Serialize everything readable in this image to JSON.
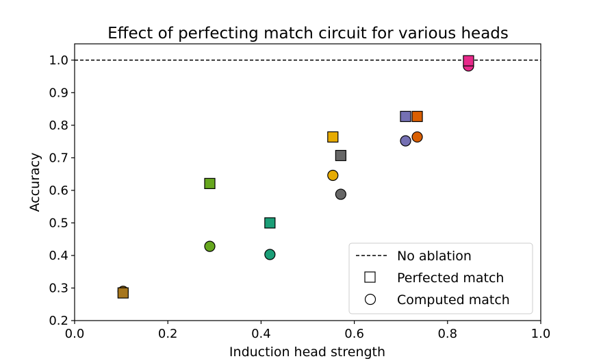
{
  "chart_data": {
    "type": "scatter",
    "title": "Effect of perfecting match circuit for various heads",
    "xlabel": "Induction head strength",
    "ylabel": "Accuracy",
    "xlim": [
      0.0,
      1.0
    ],
    "ylim": [
      0.2,
      1.05
    ],
    "xticks": [
      "0.0",
      "0.2",
      "0.4",
      "0.6",
      "0.8",
      "1.0"
    ],
    "yticks": [
      "0.2",
      "0.3",
      "0.4",
      "0.5",
      "0.6",
      "0.7",
      "0.8",
      "0.9",
      "1.0"
    ],
    "grid": false,
    "baseline": {
      "y": 1.0,
      "style": "dashed",
      "color": "#000000"
    },
    "heads": [
      {
        "x": 0.104,
        "perfected": 0.285,
        "computed": 0.29,
        "color": "#a6761d"
      },
      {
        "x": 0.29,
        "perfected": 0.621,
        "computed": 0.428,
        "color": "#66a61e"
      },
      {
        "x": 0.419,
        "perfected": 0.5,
        "computed": 0.403,
        "color": "#1b9e77"
      },
      {
        "x": 0.554,
        "perfected": 0.764,
        "computed": 0.646,
        "color": "#e6ab02"
      },
      {
        "x": 0.571,
        "perfected": 0.707,
        "computed": 0.588,
        "color": "#666666"
      },
      {
        "x": 0.71,
        "perfected": 0.827,
        "computed": 0.752,
        "color": "#7570b3"
      },
      {
        "x": 0.735,
        "perfected": 0.827,
        "computed": 0.764,
        "color": "#d95f02"
      },
      {
        "x": 0.845,
        "perfected": 0.998,
        "computed": 0.982,
        "color": "#e7298a"
      }
    ],
    "legend": {
      "position": "lower-right",
      "entries": [
        "No ablation",
        "Perfected match",
        "Computed match"
      ]
    }
  }
}
